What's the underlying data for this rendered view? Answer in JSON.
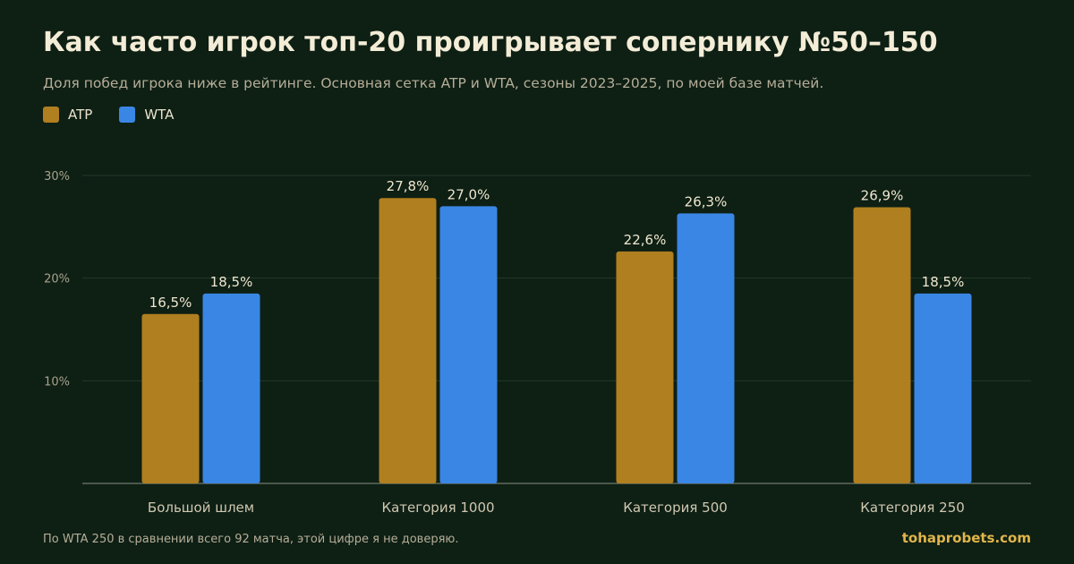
{
  "title": "Как часто игрок топ-20 проигрывает сопернику №50–150",
  "subtitle": "Доля побед игрока ниже в рейтинге. Основная сетка ATP и WTA, сезоны 2023–2025, по моей базе матчей.",
  "footnote": "По WTA 250 в сравнении всего 92 матча, этой цифре я не доверяю.",
  "brand": "tohaprobets.com",
  "colors": {
    "atp": "#b07f20",
    "wta": "#3a86e4",
    "background": "#0e1f14",
    "grid": "#233a2a"
  },
  "chart_data": {
    "type": "bar",
    "categories": [
      "Большой шлем",
      "Категория 1000",
      "Категория 500",
      "Категория 250"
    ],
    "series": [
      {
        "name": "ATP",
        "values": [
          16.5,
          27.8,
          22.6,
          26.9
        ],
        "labels": [
          "16,5%",
          "27,8%",
          "22,6%",
          "26,9%"
        ]
      },
      {
        "name": "WTA",
        "values": [
          18.5,
          27.0,
          26.3,
          18.5
        ],
        "labels": [
          "18,5%",
          "27,0%",
          "26,3%",
          "18,5%"
        ]
      }
    ],
    "y_ticks": [
      10,
      20,
      30
    ],
    "y_tick_labels": [
      "10%",
      "20%",
      "30%"
    ],
    "ylim": [
      0,
      30
    ],
    "grid": true,
    "legend_position": "top-left"
  }
}
